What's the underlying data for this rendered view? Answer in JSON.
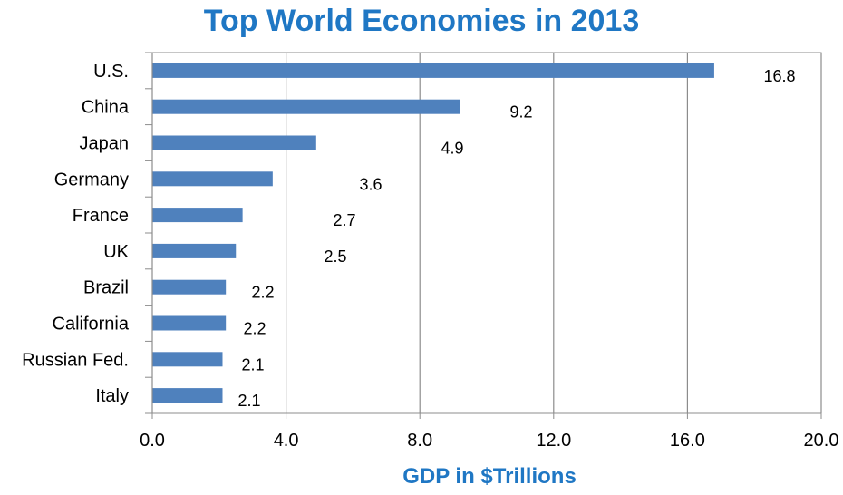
{
  "chart_data": {
    "type": "bar",
    "orientation": "horizontal",
    "title": "Top World Economies in 2013",
    "xlabel": "GDP in $Trillions",
    "ylabel": "",
    "categories": [
      "U.S.",
      "China",
      "Japan",
      "Germany",
      "France",
      "UK",
      "Brazil",
      "California",
      "Russian Fed.",
      "Italy"
    ],
    "values": [
      16.8,
      9.2,
      4.9,
      3.6,
      2.7,
      2.5,
      2.2,
      2.2,
      2.1,
      2.1
    ],
    "value_labels": [
      "16.8",
      "9.2",
      "4.9",
      "3.6",
      "2.7",
      "2.5",
      "2.2",
      "2.2",
      "2.1",
      "2.1"
    ],
    "xlim": [
      0,
      20
    ],
    "xticks": [
      "0.0",
      "4.0",
      "8.0",
      "12.0",
      "16.0",
      "20.0"
    ],
    "grid": "vertical",
    "legend": "none",
    "bar_color": "#4f81bd",
    "title_color": "#1f77c4"
  }
}
